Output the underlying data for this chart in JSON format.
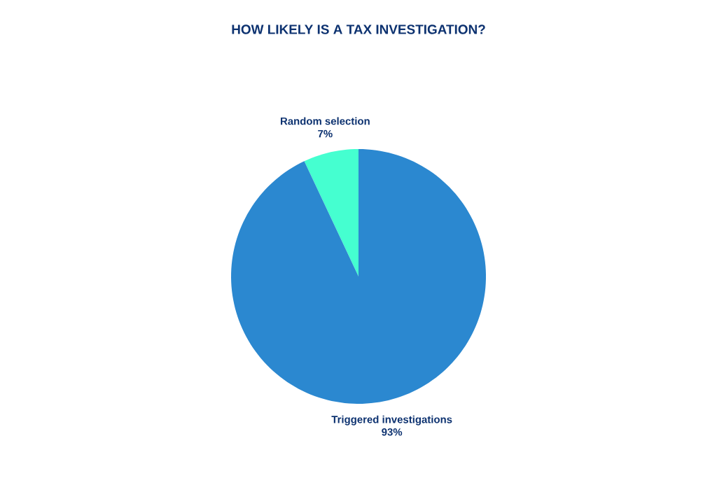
{
  "chart_data": {
    "type": "pie",
    "title": "HOW LIKELY IS A TAX INVESTIGATION?",
    "categories": [
      "Random selection",
      "Triggered investigations"
    ],
    "values": [
      7,
      93
    ],
    "value_labels": [
      "7%",
      "93%"
    ],
    "colors": [
      "#45ffd0",
      "#2b88d0"
    ]
  }
}
